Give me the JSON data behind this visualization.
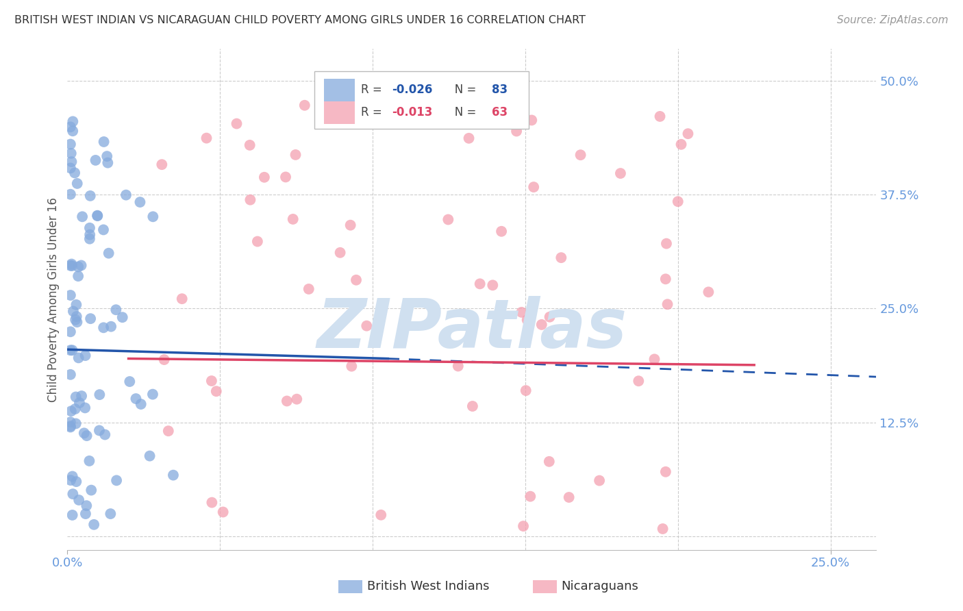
{
  "title": "BRITISH WEST INDIAN VS NICARAGUAN CHILD POVERTY AMONG GIRLS UNDER 16 CORRELATION CHART",
  "source": "Source: ZipAtlas.com",
  "ylabel": "Child Poverty Among Girls Under 16",
  "xlim": [
    0.0,
    0.265
  ],
  "ylim": [
    -0.015,
    0.535
  ],
  "blue_color": "#85AADD",
  "pink_color": "#F4A0B0",
  "trend_blue_color": "#2255AA",
  "trend_pink_color": "#DD4466",
  "watermark": "ZIPatlas",
  "watermark_color": "#D0E0F0",
  "background_color": "#FFFFFF",
  "grid_color": "#CCCCCC",
  "blue_R": -0.026,
  "blue_N": 83,
  "pink_R": -0.013,
  "pink_N": 63,
  "axis_tick_color": "#6699DD",
  "right_axis_color": "#6699DD",
  "title_color": "#333333",
  "source_color": "#999999",
  "ylabel_color": "#555555"
}
